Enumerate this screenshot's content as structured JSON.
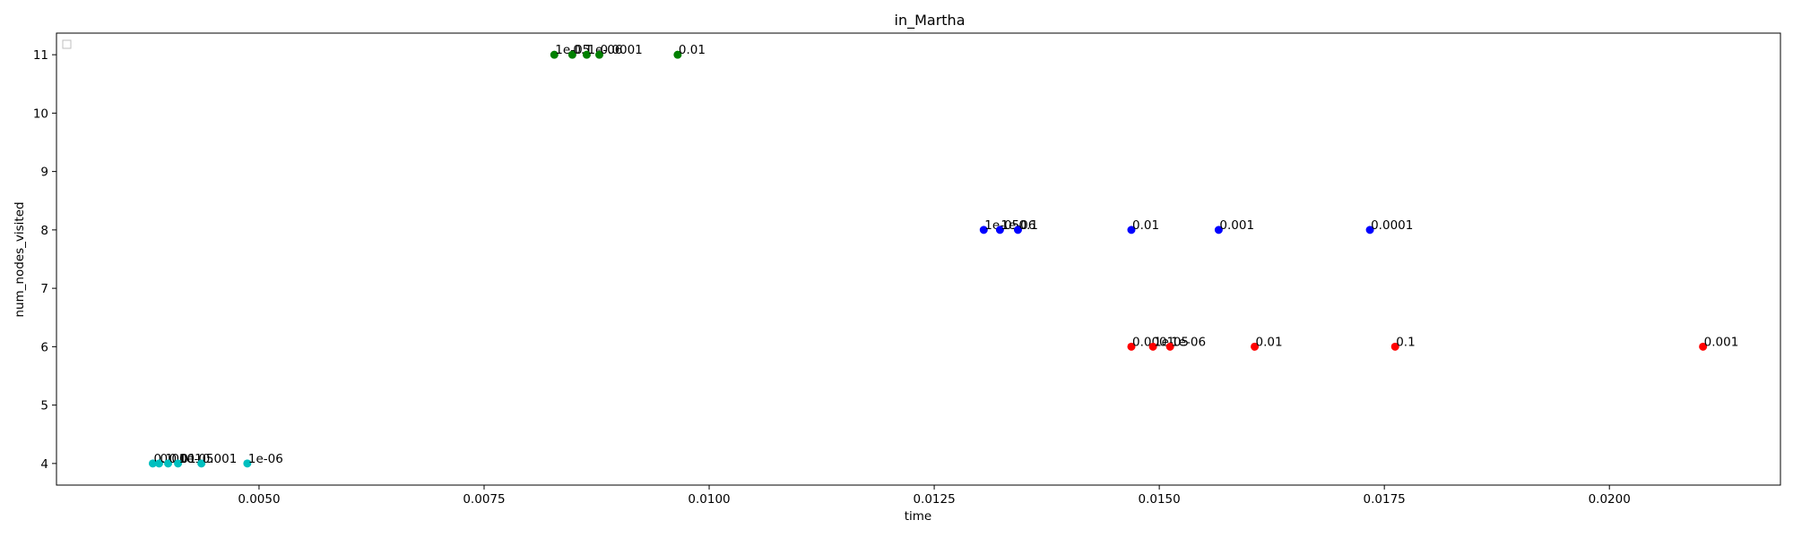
{
  "chart_data": {
    "type": "scatter",
    "title": "in_Martha",
    "xlabel": "time",
    "ylabel": "num_nodes_visited",
    "xlim": [
      0.00275,
      0.0219
    ],
    "ylim": [
      3.63,
      11.37
    ],
    "x_ticks": [
      0.005,
      0.0075,
      0.01,
      0.0125,
      0.015,
      0.0175,
      0.02
    ],
    "x_tick_labels": [
      "0.0050",
      "0.0075",
      "0.0100",
      "0.0125",
      "0.0150",
      "0.0175",
      "0.0200"
    ],
    "y_ticks": [
      4,
      5,
      6,
      7,
      8,
      9,
      10,
      11
    ],
    "y_tick_labels": [
      "4",
      "5",
      "6",
      "7",
      "8",
      "9",
      "10",
      "11"
    ],
    "grid": false,
    "legend": {
      "placement": "top-left",
      "entries": []
    },
    "series": [
      {
        "color": "#008000",
        "points": [
          {
            "x": 0.00828,
            "y": 11,
            "label": "1e-05"
          },
          {
            "x": 0.00848,
            "y": 11,
            "label": "0.1"
          },
          {
            "x": 0.00864,
            "y": 11,
            "label": "1e-06"
          },
          {
            "x": 0.00878,
            "y": 11,
            "label": "0.0001"
          },
          {
            "x": 0.00965,
            "y": 11,
            "label": "0.01"
          }
        ]
      },
      {
        "color": "#0000ff",
        "points": [
          {
            "x": 0.01305,
            "y": 8,
            "label": "1e-05"
          },
          {
            "x": 0.01323,
            "y": 8,
            "label": "1e-06"
          },
          {
            "x": 0.01343,
            "y": 8,
            "label": "0.1"
          },
          {
            "x": 0.01469,
            "y": 8,
            "label": "0.01"
          },
          {
            "x": 0.01566,
            "y": 8,
            "label": "0.001"
          },
          {
            "x": 0.01734,
            "y": 8,
            "label": "0.0001"
          }
        ]
      },
      {
        "color": "#ff0000",
        "points": [
          {
            "x": 0.01469,
            "y": 6,
            "label": "0.0001"
          },
          {
            "x": 0.01493,
            "y": 6,
            "label": "1e-05"
          },
          {
            "x": 0.01512,
            "y": 6,
            "label": "1e-06"
          },
          {
            "x": 0.01606,
            "y": 6,
            "label": "0.01"
          },
          {
            "x": 0.01762,
            "y": 6,
            "label": "0.1"
          },
          {
            "x": 0.02104,
            "y": 6,
            "label": "0.001"
          }
        ]
      },
      {
        "color": "#00bfbf",
        "points": [
          {
            "x": 0.00382,
            "y": 4,
            "label": "0.1"
          },
          {
            "x": 0.00389,
            "y": 4,
            "label": "0.0001"
          },
          {
            "x": 0.00399,
            "y": 4,
            "label": "0.01"
          },
          {
            "x": 0.0041,
            "y": 4,
            "label": "1e-05"
          },
          {
            "x": 0.00436,
            "y": 4,
            "label": "0.001"
          },
          {
            "x": 0.00487,
            "y": 4,
            "label": "1e-06"
          }
        ]
      }
    ]
  }
}
